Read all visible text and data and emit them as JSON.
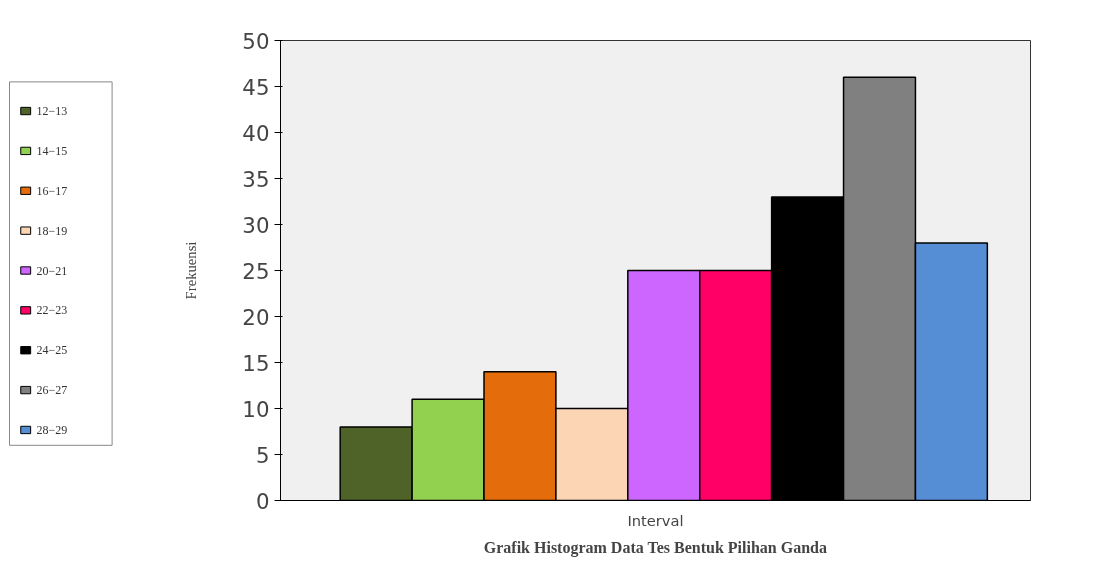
{
  "chart_data": {
    "type": "bar",
    "title": "Grafik Histogram Data Tes Bentuk Pilihan Ganda",
    "xlabel": "Interval",
    "ylabel": "Frekuensi",
    "categories": [
      null,
      null,
      null,
      null,
      null,
      null,
      null,
      null,
      null
    ],
    "series": [
      {
        "name": "12−13",
        "color": "#4f6228",
        "values": [
          8,
          null,
          null,
          null,
          null,
          null,
          null,
          null,
          null
        ]
      },
      {
        "name": "14−15",
        "color": "#92d050",
        "values": [
          null,
          11,
          null,
          null,
          null,
          null,
          null,
          null,
          null
        ]
      },
      {
        "name": "16−17",
        "color": "#e46c0a",
        "values": [
          null,
          null,
          14,
          null,
          null,
          null,
          null,
          null,
          null
        ]
      },
      {
        "name": "18−19",
        "color": "#fcd5b5",
        "values": [
          null,
          null,
          null,
          10,
          null,
          null,
          null,
          null,
          null
        ]
      },
      {
        "name": "20−21",
        "color": "#cc66ff",
        "values": [
          null,
          null,
          null,
          null,
          25,
          null,
          null,
          null,
          null
        ]
      },
      {
        "name": "22−23",
        "color": "#ff0066",
        "values": [
          null,
          null,
          null,
          null,
          null,
          25,
          null,
          null,
          null
        ]
      },
      {
        "name": "24−25",
        "color": "#000000",
        "values": [
          null,
          null,
          null,
          null,
          null,
          null,
          33,
          null,
          null
        ]
      },
      {
        "name": "26−27",
        "color": "#808080",
        "values": [
          null,
          null,
          null,
          null,
          null,
          null,
          null,
          46,
          null
        ]
      },
      {
        "name": "28−29",
        "color": "#558ed5",
        "values": [
          null,
          null,
          null,
          null,
          null,
          null,
          null,
          null,
          28
        ]
      }
    ],
    "ylim": [
      0,
      50
    ],
    "yticks": [
      0,
      5,
      10,
      15,
      20,
      25,
      30,
      35,
      40,
      45,
      50
    ],
    "stacked": true,
    "grid": false,
    "legend": "left",
    "tick_labels": "y"
  }
}
